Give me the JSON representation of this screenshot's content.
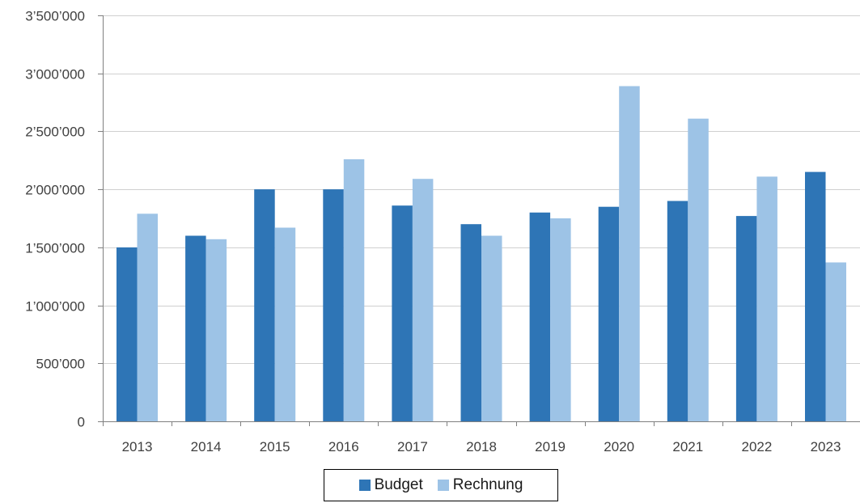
{
  "chart_data": {
    "type": "bar",
    "categories": [
      "2013",
      "2014",
      "2015",
      "2016",
      "2017",
      "2018",
      "2019",
      "2020",
      "2021",
      "2022",
      "2023"
    ],
    "series": [
      {
        "name": "Budget",
        "color": "#2E75B6",
        "values": [
          1500000,
          1600000,
          2000000,
          2000000,
          1860000,
          1700000,
          1800000,
          1850000,
          1900000,
          1770000,
          2150000
        ]
      },
      {
        "name": "Rechnung",
        "color": "#9DC3E6",
        "values": [
          1790000,
          1570000,
          1670000,
          2260000,
          2090000,
          1600000,
          1750000,
          2890000,
          2610000,
          2110000,
          1370000
        ]
      }
    ],
    "y_ticks": [
      0,
      500000,
      1000000,
      1500000,
      2000000,
      2500000,
      3000000,
      3500000
    ],
    "y_tick_labels": [
      "0",
      "500’000",
      "1’000’000",
      "1’500’000",
      "2’000’000",
      "2’500’000",
      "3’000’000",
      "3’500’000"
    ],
    "ylim": [
      0,
      3500000
    ],
    "grid": "horizontal",
    "legend_position": "bottom-center",
    "title": "",
    "xlabel": "",
    "ylabel": ""
  },
  "legend": {
    "items": [
      {
        "label": "Budget",
        "color": "#2E75B6"
      },
      {
        "label": "Rechnung",
        "color": "#9DC3E6"
      }
    ]
  }
}
